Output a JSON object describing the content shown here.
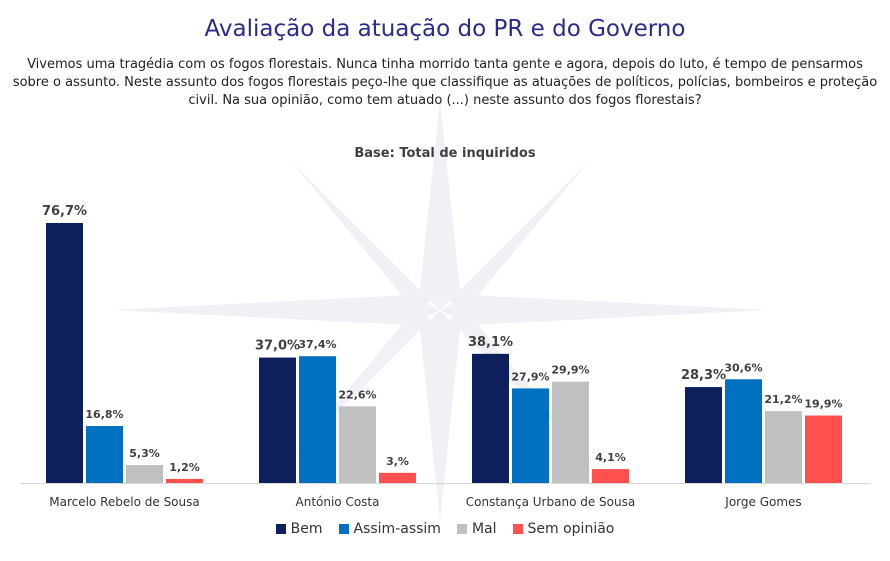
{
  "title": "Avaliação da atuação do PR e do Governo",
  "question": "Vivemos uma tragédia com os fogos florestais. Nunca tinha morrido tanta gente e agora, depois do luto, é tempo de pensarmos sobre o assunto. Neste assunto dos fogos florestais peço-lhe que classifique as atuações de políticos, polícias, bombeiros e proteção civil. Na sua opinião, como tem atuado (...) neste assunto dos fogos florestais?",
  "colors": {
    "Bem": "#0d1f5c",
    "Assim-assim": "#0070c0",
    "Mal": "#c0c0c0",
    "Sem opinião": "#ff5050"
  },
  "chart_data": {
    "type": "bar",
    "title": "Base: Total de inquiridos",
    "categories": [
      "Marcelo Rebelo de Sousa",
      "António Costa",
      "Constança Urbano de Sousa",
      "Jorge Gomes"
    ],
    "series": [
      {
        "name": "Bem",
        "values": [
          76.7,
          37.0,
          38.1,
          28.3
        ],
        "labels": [
          "76,7%",
          "37,0%",
          "38,1%",
          "28,3%"
        ]
      },
      {
        "name": "Assim-assim",
        "values": [
          16.8,
          37.4,
          27.9,
          30.6
        ],
        "labels": [
          "16,8%",
          "37,4%",
          "27,9%",
          "30,6%"
        ]
      },
      {
        "name": "Mal",
        "values": [
          5.3,
          22.6,
          29.9,
          21.2
        ],
        "labels": [
          "5,3%",
          "22,6%",
          "29,9%",
          "21,2%"
        ]
      },
      {
        "name": "Sem opinião",
        "values": [
          1.2,
          3.0,
          4.1,
          19.9
        ],
        "labels": [
          "1,2%",
          "3,%",
          "4,1%",
          "19,9%"
        ]
      }
    ],
    "ylim": [
      0,
      80
    ],
    "grid": false,
    "legend": "bottom"
  }
}
